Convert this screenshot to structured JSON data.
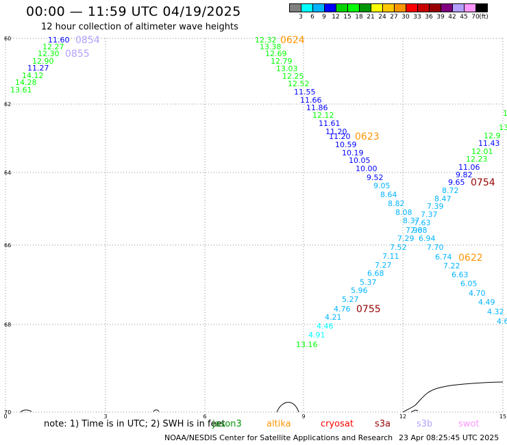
{
  "header": {
    "title": "00:00 — 11:59 UTC 04/19/2025",
    "subtitle": "12 hour collection of altimeter wave heights"
  },
  "legend": {
    "colors": [
      "#808080",
      "#00ffff",
      "#00b4ff",
      "#0000ff",
      "#00d200",
      "#00ff00",
      "#009600",
      "#ffff00",
      "#ffc800",
      "#ff9600",
      "#ff0000",
      "#c80000",
      "#960000",
      "#800080",
      "#b4a0ff",
      "#ff96ff",
      "#000000"
    ],
    "labels": [
      "3",
      "6",
      "9",
      "12",
      "15",
      "18",
      "21",
      "24",
      "27",
      "30",
      "33",
      "36",
      "39",
      "42",
      "45",
      "70",
      "(ft)"
    ]
  },
  "map": {
    "lat_ticks": [
      "60",
      "62",
      "64",
      "66",
      "68",
      "70"
    ],
    "lon_ticks": [
      "0",
      "3",
      "6",
      "9",
      "12",
      "15"
    ]
  },
  "passes": [
    {
      "id": "pass_0854",
      "label": "0854",
      "label_color": "#b4a0ff",
      "label_pos": [
        110,
        58
      ],
      "points": [
        {
          "v": "11.60",
          "c": "#0000ff",
          "p": [
            70,
            58
          ]
        },
        {
          "v": "12.27",
          "c": "#00ff00",
          "p": [
            62,
            68
          ]
        },
        {
          "v": "12.30",
          "c": "#00ff00",
          "p": [
            55,
            78
          ]
        },
        {
          "v": "12.90",
          "c": "#00ff00",
          "p": [
            47,
            89
          ]
        },
        {
          "v": "11.27",
          "c": "#0000ff",
          "p": [
            40,
            99
          ]
        },
        {
          "v": "14.12",
          "c": "#00ff00",
          "p": [
            32,
            110
          ]
        },
        {
          "v": "14.28",
          "c": "#00ff00",
          "p": [
            22,
            120
          ]
        },
        {
          "v": "13.61",
          "c": "#00ff00",
          "p": [
            15,
            131
          ]
        }
      ]
    },
    {
      "id": "pass_0855",
      "label": "0855",
      "label_color": "#b4a0ff",
      "label_pos": [
        95,
        78
      ],
      "points": []
    },
    {
      "id": "pass_0624",
      "label": "0624",
      "label_color": "#ff9600",
      "label_pos": [
        409,
        58
      ],
      "points": [
        {
          "v": "12.32",
          "c": "#00ff00",
          "p": [
            372,
            58
          ]
        },
        {
          "v": "13.38",
          "c": "#00ff00",
          "p": [
            379,
            68
          ]
        },
        {
          "v": "12.69",
          "c": "#00ff00",
          "p": [
            387,
            78
          ]
        },
        {
          "v": "12.79",
          "c": "#00ff00",
          "p": [
            395,
            89
          ]
        },
        {
          "v": "13.03",
          "c": "#00ff00",
          "p": [
            403,
            100
          ]
        },
        {
          "v": "12.25",
          "c": "#00ff00",
          "p": [
            412,
            111
          ]
        },
        {
          "v": "12.52",
          "c": "#00ff00",
          "p": [
            420,
            122
          ]
        },
        {
          "v": "11.55",
          "c": "#0000ff",
          "p": [
            429,
            134
          ]
        },
        {
          "v": "11.66",
          "c": "#0000ff",
          "p": [
            438,
            146
          ]
        },
        {
          "v": "11.86",
          "c": "#0000ff",
          "p": [
            447,
            157
          ]
        },
        {
          "v": "12.12",
          "c": "#00ff00",
          "p": [
            456,
            168
          ]
        },
        {
          "v": "11.61",
          "c": "#0000ff",
          "p": [
            465,
            180
          ]
        },
        {
          "v": "11.20",
          "c": "#0000ff",
          "p": [
            475,
            192
          ]
        },
        {
          "v": "11.20",
          "c": "#0000ff",
          "p": [
            480,
            199
          ]
        },
        {
          "v": "10.59",
          "c": "#0000ff",
          "p": [
            489,
            211
          ]
        },
        {
          "v": "10.19",
          "c": "#0000ff",
          "p": [
            499,
            223
          ]
        },
        {
          "v": "10.05",
          "c": "#0000ff",
          "p": [
            509,
            234
          ]
        },
        {
          "v": "10.00",
          "c": "#0000ff",
          "p": [
            519,
            246
          ]
        },
        {
          "v": "9.52",
          "c": "#0000ff",
          "p": [
            535,
            259
          ]
        },
        {
          "v": "9.05",
          "c": "#00b4ff",
          "p": [
            545,
            271
          ]
        },
        {
          "v": "8.64",
          "c": "#00b4ff",
          "p": [
            555,
            284
          ]
        },
        {
          "v": "8.82",
          "c": "#00b4ff",
          "p": [
            566,
            297
          ]
        },
        {
          "v": "8.08",
          "c": "#00b4ff",
          "p": [
            577,
            310
          ]
        },
        {
          "v": "8.37",
          "c": "#00b4ff",
          "p": [
            588,
            322
          ]
        },
        {
          "v": "7.90",
          "c": "#00b4ff",
          "p": [
            592,
            336
          ]
        },
        {
          "v": "7.29",
          "c": "#00b4ff",
          "p": [
            580,
            348
          ]
        }
      ]
    },
    {
      "id": "pass_0623",
      "label": "0623",
      "label_color": "#ff9600",
      "label_pos": [
        518,
        199
      ],
      "points": []
    },
    {
      "id": "pass_0754",
      "label": "0754",
      "label_color": "#960000",
      "label_pos": [
        687,
        266
      ],
      "points": [
        {
          "v": "1",
          "c": "#00ff00",
          "p": [
            734,
            165
          ]
        },
        {
          "v": "13.",
          "c": "#00ff00",
          "p": [
            728,
            186
          ]
        },
        {
          "v": "12.9",
          "c": "#00ff00",
          "p": [
            706,
            198
          ]
        },
        {
          "v": "11.43",
          "c": "#0000ff",
          "p": [
            698,
            209
          ]
        },
        {
          "v": "12.01",
          "c": "#00ff00",
          "p": [
            688,
            221
          ]
        },
        {
          "v": "12.23",
          "c": "#00ff00",
          "p": [
            680,
            232
          ]
        },
        {
          "v": "11.06",
          "c": "#0000ff",
          "p": [
            669,
            244
          ]
        },
        {
          "v": "9.82",
          "c": "#0000ff",
          "p": [
            665,
            255
          ]
        },
        {
          "v": "9.65",
          "c": "#0000ff",
          "p": [
            654,
            266
          ]
        },
        {
          "v": "8.72",
          "c": "#00b4ff",
          "p": [
            645,
            278
          ]
        },
        {
          "v": "8.47",
          "c": "#00b4ff",
          "p": [
            634,
            290
          ]
        },
        {
          "v": "7.39",
          "c": "#00b4ff",
          "p": [
            623,
            301
          ]
        },
        {
          "v": "7.37",
          "c": "#00b4ff",
          "p": [
            614,
            313
          ]
        },
        {
          "v": "7.63",
          "c": "#00b4ff",
          "p": [
            604,
            325
          ]
        },
        {
          "v": "7.88",
          "c": "#00b4ff",
          "p": [
            599,
            336
          ]
        },
        {
          "v": "6.94",
          "c": "#00b4ff",
          "p": [
            611,
            348
          ]
        }
      ]
    },
    {
      "id": "pass_0622",
      "label": "0622",
      "label_color": "#ff9600",
      "label_pos": [
        669,
        376
      ],
      "points": [
        {
          "v": "7.70",
          "c": "#00b4ff",
          "p": [
            623,
            361
          ]
        },
        {
          "v": "6.74",
          "c": "#00b4ff",
          "p": [
            635,
            375
          ]
        },
        {
          "v": "7.22",
          "c": "#00b4ff",
          "p": [
            647,
            388
          ]
        },
        {
          "v": "6.63",
          "c": "#00b4ff",
          "p": [
            659,
            401
          ]
        },
        {
          "v": "6.05",
          "c": "#00b4ff",
          "p": [
            672,
            414
          ]
        },
        {
          "v": "4.70",
          "c": "#00b4ff",
          "p": [
            684,
            428
          ]
        },
        {
          "v": "4.49",
          "c": "#00b4ff",
          "p": [
            698,
            441
          ]
        },
        {
          "v": "4.32",
          "c": "#00b4ff",
          "p": [
            711,
            455
          ]
        },
        {
          "v": "4.6",
          "c": "#00b4ff",
          "p": [
            725,
            469
          ]
        }
      ]
    },
    {
      "id": "pass_0755",
      "label": "0755",
      "label_color": "#960000",
      "label_pos": [
        520,
        451
      ],
      "points": [
        {
          "v": "7.52",
          "c": "#00b4ff",
          "p": [
            569,
            361
          ]
        },
        {
          "v": "7.11",
          "c": "#00b4ff",
          "p": [
            558,
            374
          ]
        },
        {
          "v": "7.27",
          "c": "#00b4ff",
          "p": [
            547,
            387
          ]
        },
        {
          "v": "6.68",
          "c": "#00b4ff",
          "p": [
            536,
            399
          ]
        },
        {
          "v": "5.37",
          "c": "#00b4ff",
          "p": [
            525,
            412
          ]
        },
        {
          "v": "5.96",
          "c": "#00b4ff",
          "p": [
            512,
            424
          ]
        },
        {
          "v": "5.27",
          "c": "#00b4ff",
          "p": [
            499,
            437
          ]
        },
        {
          "v": "4.76",
          "c": "#00b4ff",
          "p": [
            487,
            451
          ]
        },
        {
          "v": "4.21",
          "c": "#00b4ff",
          "p": [
            474,
            463
          ]
        },
        {
          "v": "4.46",
          "c": "#00ffff",
          "p": [
            462,
            476
          ]
        },
        {
          "v": "4.91",
          "c": "#00ffff",
          "p": [
            450,
            489
          ]
        },
        {
          "v": "13.16",
          "c": "#00ff00",
          "p": [
            432,
            503
          ]
        }
      ]
    }
  ],
  "note": "note:  1) Time is in UTC; 2) SWH is in feet",
  "missions": [
    {
      "name": "jason3",
      "color": "#009600"
    },
    {
      "name": "altika",
      "color": "#ff9600"
    },
    {
      "name": "cryosat",
      "color": "#ff0000"
    },
    {
      "name": "s3a",
      "color": "#960000"
    },
    {
      "name": "s3b",
      "color": "#b4a0ff"
    },
    {
      "name": "swot",
      "color": "#ff96ff"
    }
  ],
  "footer": "NOAA/NESDIS Center for Satellite Applications and Research",
  "footer_time": "23 Apr 08:25:45 UTC 2025"
}
